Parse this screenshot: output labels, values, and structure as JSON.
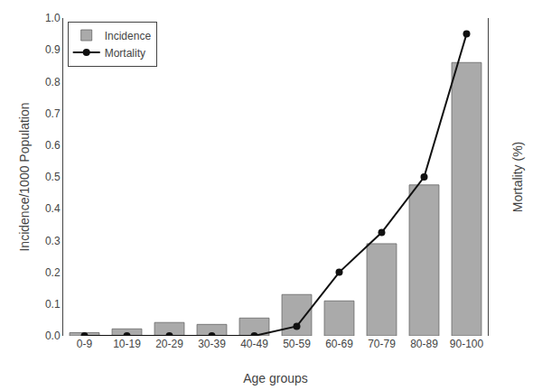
{
  "chart_data": {
    "type": "bar",
    "categories": [
      "0-9",
      "10-19",
      "20-29",
      "30-39",
      "40-49",
      "50-59",
      "60-69",
      "70-79",
      "80-89",
      "90-100"
    ],
    "series": [
      {
        "name": "Incidence",
        "type": "bar",
        "color": "#aaaaaa",
        "values": [
          0.01,
          0.022,
          0.042,
          0.036,
          0.056,
          0.13,
          0.11,
          0.29,
          0.475,
          0.86
        ]
      },
      {
        "name": "Mortality",
        "type": "line",
        "axis": "y2",
        "color": "#111111",
        "marker": "circle",
        "line_style": "solid",
        "values": [
          0.0,
          0.0,
          0.0,
          0.0,
          0.0,
          0.03,
          0.2,
          0.325,
          0.5,
          0.95
        ]
      }
    ],
    "xlabel": "Age groups",
    "ylabel": "Incidence/1000 Population",
    "y2label": "Mortality (%)",
    "ylim": [
      0,
      1.0
    ],
    "yticks": [
      {
        "value": 0.0,
        "label": "0.0"
      },
      0.1,
      0.2,
      0.3,
      0.4,
      0.5,
      0.6,
      0.7,
      0.8,
      0.9,
      {
        "value": 1.0,
        "label": "1.0"
      }
    ],
    "y2lim": [
      0,
      1.0
    ],
    "grid": false,
    "legend": "upper left"
  }
}
